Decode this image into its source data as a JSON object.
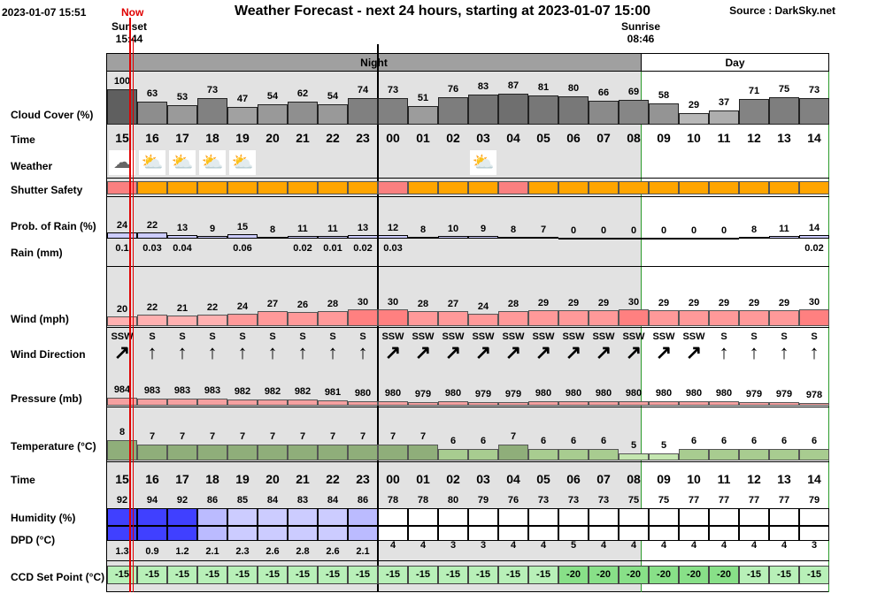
{
  "header": {
    "date": "2023-01-07 15:51",
    "now_label": "Now",
    "title": "Weather Forecast - next 24 hours, starting at 2023-01-07 15:00",
    "source": "Source : DarkSky.net"
  },
  "events": {
    "sunset_label": "Sunset",
    "sunset_time": "15:44",
    "sunrise_label": "Sunrise",
    "sunrise_time": "08:46"
  },
  "periods": {
    "night": "Night",
    "day": "Day"
  },
  "labels": {
    "cloud": "Cloud Cover (%)",
    "time": "Time",
    "weather": "Weather",
    "shutter": "Shutter Safety",
    "prob": "Prob. of Rain (%)",
    "rain": "Rain (mm)",
    "wind": "Wind (mph)",
    "winddir": "Wind Direction",
    "pressure": "Pressure (mb)",
    "temp": "Temperature (°C)",
    "time2": "Time",
    "humidity": "Humidity (%)",
    "dpd": "DPD (°C)",
    "ccd": "CCD Set Point (°C)"
  },
  "hours": [
    "15",
    "16",
    "17",
    "18",
    "19",
    "20",
    "21",
    "22",
    "23",
    "00",
    "01",
    "02",
    "03",
    "04",
    "05",
    "06",
    "07",
    "08",
    "09",
    "10",
    "11",
    "12",
    "13",
    "14"
  ],
  "cloud_cover": [
    100,
    63,
    53,
    73,
    47,
    54,
    62,
    54,
    74,
    73,
    51,
    76,
    83,
    87,
    81,
    80,
    66,
    69,
    58,
    29,
    37,
    71,
    75,
    73
  ],
  "weather_icons": [
    "cloud-icon",
    "partly-cloudy-moon-icon",
    "partly-cloudy-moon-icon",
    "partly-cloudy-moon-icon",
    "partly-cloudy-moon-icon",
    "",
    "",
    "",
    "",
    "",
    "",
    "",
    "partly-cloudy-moon-icon",
    "",
    "",
    "",
    "",
    "",
    "",
    "",
    "",
    "",
    "",
    ""
  ],
  "shutter_safety": [
    "unsafe",
    "caution",
    "caution",
    "caution",
    "caution",
    "caution",
    "caution",
    "caution",
    "caution",
    "unsafe",
    "caution",
    "caution",
    "caution",
    "unsafe",
    "caution",
    "caution",
    "caution",
    "caution",
    "caution",
    "caution",
    "caution",
    "caution",
    "caution",
    "caution"
  ],
  "prob_rain": [
    24,
    22,
    13,
    9,
    15,
    8,
    11,
    11,
    13,
    12,
    8,
    10,
    9,
    8,
    7,
    0,
    0,
    0,
    0,
    0,
    0,
    8,
    11,
    14
  ],
  "rain_mm": [
    "0.1",
    "0.03",
    "0.04",
    "",
    "0.06",
    "",
    "0.02",
    "0.01",
    "0.02",
    "0.03",
    "",
    "",
    "",
    "",
    "",
    "",
    "",
    "",
    "",
    "",
    "",
    "",
    "",
    "0.02"
  ],
  "wind": [
    20,
    22,
    21,
    22,
    24,
    27,
    26,
    28,
    30,
    30,
    28,
    27,
    24,
    28,
    29,
    29,
    29,
    30,
    29,
    29,
    29,
    29,
    29,
    30
  ],
  "wind_dir": [
    "SSW",
    "S",
    "S",
    "S",
    "S",
    "S",
    "S",
    "S",
    "S",
    "SSW",
    "SSW",
    "SSW",
    "SSW",
    "SSW",
    "SSW",
    "SSW",
    "SSW",
    "SSW",
    "SSW",
    "SSW",
    "S",
    "S",
    "S",
    "S"
  ],
  "pressure": [
    984,
    983,
    983,
    983,
    982,
    982,
    982,
    981,
    980,
    980,
    979,
    980,
    979,
    979,
    980,
    980,
    980,
    980,
    980,
    980,
    980,
    979,
    979,
    978
  ],
  "temperature": [
    8,
    7,
    7,
    7,
    7,
    7,
    7,
    7,
    7,
    7,
    7,
    6,
    6,
    7,
    6,
    6,
    6,
    5,
    5,
    6,
    6,
    6,
    6,
    6
  ],
  "humidity": [
    92,
    94,
    92,
    86,
    85,
    84,
    83,
    84,
    86,
    78,
    78,
    80,
    79,
    76,
    73,
    73,
    73,
    75,
    75,
    77,
    77,
    77,
    77,
    79
  ],
  "dpd": [
    "1.3",
    "0.9",
    "1.2",
    "2.1",
    "2.3",
    "2.6",
    "2.8",
    "2.6",
    "2.1",
    "4",
    "4",
    "3",
    "3",
    "4",
    "4",
    "5",
    "4",
    "4",
    "4",
    "4",
    "4",
    "4",
    "4",
    "3"
  ],
  "ccd": [
    "-15",
    "-15",
    "-15",
    "-15",
    "-15",
    "-15",
    "-15",
    "-15",
    "-15",
    "-15",
    "-15",
    "-15",
    "-15",
    "-15",
    "-15",
    "-20",
    "-20",
    "-20",
    "-20",
    "-20",
    "-20",
    "-15",
    "-15",
    "-15"
  ],
  "colors": {
    "night_bg": "#e2e2e2",
    "night_header": "#a0a0a0",
    "now_line": "#e00000",
    "shutter_caution": "#ffa500",
    "shutter_unsafe": "#fa8080",
    "wind": "#ff9999",
    "pressure": "#f5a0a0",
    "temp": "#8fae7a",
    "humidity_high": "#4040ff",
    "ccd_default": "#b8f0b8",
    "ccd_cold": "#88e088"
  }
}
